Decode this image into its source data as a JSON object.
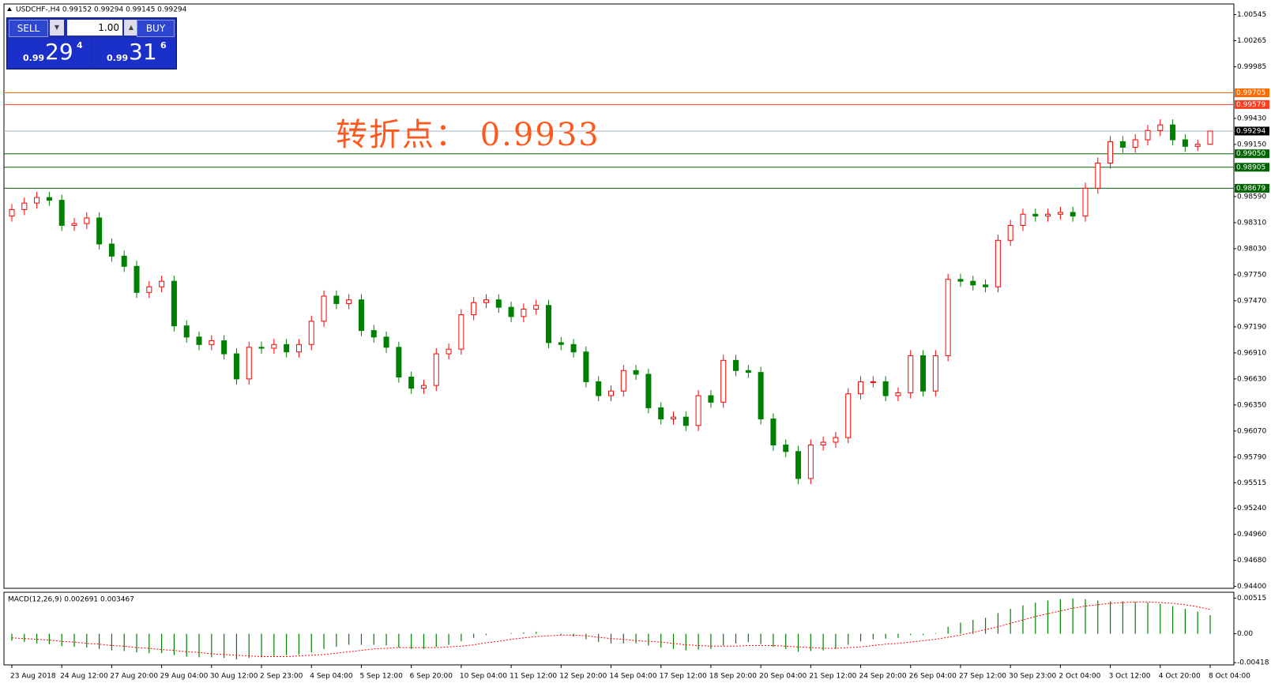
{
  "header": {
    "symbol_info": "USDCHF-,H4  0.99152 0.99294 0.99145 0.99294"
  },
  "trade_panel": {
    "sell": "SELL",
    "buy": "BUY",
    "lot": "1.00",
    "sell_price": {
      "prefix": "0.99",
      "main": "29",
      "suffix": "4"
    },
    "buy_price": {
      "prefix": "0.99",
      "main": "31",
      "suffix": "6"
    }
  },
  "annotation": "转折点： 0.9933",
  "chart_data": [
    {
      "type": "candlestick",
      "up_color": "#ff0000",
      "down_color": "#008000",
      "ylim": [
        0.9438,
        1.0066
      ],
      "yticks": [
        1.00545,
        1.00265,
        0.99985,
        {
          "value": 0.9943,
          "label": "0.99430"
        },
        {
          "value": 0.9915,
          "label": "0.99150"
        },
        {
          "value": 0.9859,
          "label": "0.98590"
        },
        {
          "value": 0.9831,
          "label": "0.98310"
        },
        {
          "value": 0.9803,
          "label": "0.98030"
        },
        {
          "value": 0.9775,
          "label": "0.97750"
        },
        {
          "value": 0.9747,
          "label": "0.97470"
        },
        {
          "value": 0.9719,
          "label": "0.97190"
        },
        {
          "value": 0.9691,
          "label": "0.96910"
        },
        {
          "value": 0.9663,
          "label": "0.96630"
        },
        {
          "value": 0.9635,
          "label": "0.96350"
        },
        {
          "value": 0.9607,
          "label": "0.96070"
        },
        {
          "value": 0.9579,
          "label": "0.95790"
        },
        0.95515,
        {
          "value": 0.9524,
          "label": "0.95240"
        },
        {
          "value": 0.9496,
          "label": "0.94960"
        },
        {
          "value": 0.9468,
          "label": "0.94680"
        },
        {
          "value": 0.944,
          "label": "0.94400"
        }
      ],
      "levels": [
        {
          "value": 0.99705,
          "color": "#ff6a00"
        },
        {
          "value": 0.99579,
          "color": "#ff3c1e"
        },
        {
          "value": 0.99294,
          "color": "#000000",
          "line_color": "#9fb4c8"
        },
        {
          "value": {
            "value": 0.9905,
            "label": "0.99050"
          },
          "color": "#006400"
        },
        {
          "value": 0.98905,
          "color": "#006400"
        },
        {
          "value": 0.98679,
          "color": "#006400"
        }
      ],
      "x": [
        "23 Aug 2018",
        null,
        null,
        null,
        "24 Aug 12:00",
        null,
        null,
        null,
        "27 Aug 20:00",
        null,
        null,
        null,
        "29 Aug 04:00",
        null,
        null,
        null,
        "30 Aug 12:00",
        null,
        null,
        null,
        "2 Sep 23:00",
        null,
        null,
        null,
        "4 Sep 04:00",
        null,
        null,
        null,
        "5 Sep 12:00",
        null,
        null,
        null,
        "6 Sep 20:00",
        null,
        null,
        null,
        "10 Sep 04:00",
        null,
        null,
        null,
        "11 Sep 12:00",
        null,
        null,
        null,
        "12 Sep 20:00",
        null,
        null,
        null,
        "14 Sep 04:00",
        null,
        null,
        null,
        "17 Sep 12:00",
        null,
        null,
        null,
        "18 Sep 20:00",
        null,
        null,
        null,
        "20 Sep 04:00",
        null,
        null,
        null,
        "21 Sep 12:00",
        null,
        null,
        null,
        "24 Sep 20:00",
        null,
        null,
        null,
        "26 Sep 04:00",
        null,
        null,
        null,
        "27 Sep 12:00",
        null,
        null,
        null,
        "30 Sep 23:00",
        null,
        null,
        null,
        "2 Oct 04:00",
        null,
        null,
        null,
        "3 Oct 12:00",
        null,
        null,
        null,
        "4 Oct 20:00",
        null,
        null,
        null,
        "8 Oct 04:00"
      ],
      "open": [
        0.9838,
        0.9845,
        0.9852,
        0.9858,
        0.9855,
        0.9828,
        0.983,
        0.9836,
        0.9808,
        0.9795,
        0.9784,
        0.9756,
        0.9762,
        0.9768,
        0.972,
        0.9708,
        0.97,
        0.9704,
        0.969,
        0.9663,
        0.9697,
        0.9696,
        0.97,
        0.9692,
        0.97,
        0.9725,
        0.9752,
        0.9744,
        0.9748,
        0.9715,
        0.9708,
        0.9697,
        0.9665,
        0.9653,
        0.9656,
        0.969,
        0.9695,
        0.9732,
        0.9745,
        0.9748,
        0.974,
        0.973,
        0.9738,
        0.9742,
        0.9702,
        0.97,
        0.9692,
        0.966,
        0.9645,
        0.965,
        0.9672,
        0.9668,
        0.9632,
        0.962,
        0.9622,
        0.9613,
        0.9645,
        0.9638,
        0.9683,
        0.9672,
        0.967,
        0.962,
        0.9592,
        0.9585,
        0.9556,
        0.9592,
        0.9595,
        0.96,
        0.9647,
        0.966,
        0.966,
        0.9645,
        0.9648,
        0.9688,
        0.965,
        0.9688,
        0.977,
        0.9768,
        0.9764,
        0.9762,
        0.9812,
        0.9828,
        0.984,
        0.9838,
        0.984,
        0.9842,
        0.9838,
        0.9868,
        0.9895,
        0.9918,
        0.9912,
        0.992,
        0.993,
        0.9936,
        0.992,
        0.9913,
        0.99152
      ],
      "high": [
        0.9851,
        0.9858,
        0.9864,
        0.9864,
        0.9861,
        0.9836,
        0.9842,
        0.9842,
        0.9814,
        0.9801,
        0.979,
        0.9768,
        0.9774,
        0.9774,
        0.9726,
        0.9714,
        0.971,
        0.971,
        0.9696,
        0.9703,
        0.9703,
        0.9706,
        0.9706,
        0.9706,
        0.9731,
        0.9758,
        0.9758,
        0.9754,
        0.9754,
        0.9721,
        0.9714,
        0.9703,
        0.9671,
        0.9662,
        0.9696,
        0.9701,
        0.9738,
        0.9751,
        0.9754,
        0.9754,
        0.9746,
        0.9744,
        0.9748,
        0.9748,
        0.9708,
        0.9706,
        0.9698,
        0.9666,
        0.9656,
        0.9678,
        0.9678,
        0.9674,
        0.9638,
        0.9628,
        0.9628,
        0.9651,
        0.9651,
        0.9689,
        0.9689,
        0.9678,
        0.9676,
        0.9626,
        0.9598,
        0.9591,
        0.9598,
        0.9601,
        0.9606,
        0.9653,
        0.9666,
        0.9666,
        0.9666,
        0.9654,
        0.9694,
        0.9694,
        0.9694,
        0.9776,
        0.9776,
        0.9774,
        0.977,
        0.9818,
        0.9834,
        0.9846,
        0.9846,
        0.9846,
        0.9848,
        0.9848,
        0.9874,
        0.9901,
        0.9924,
        0.9924,
        0.9926,
        0.9936,
        0.9942,
        0.9942,
        0.9926,
        0.992,
        0.99294
      ],
      "low": [
        0.9832,
        0.9839,
        0.9846,
        0.9849,
        0.9822,
        0.9822,
        0.9824,
        0.9802,
        0.9789,
        0.9778,
        0.975,
        0.975,
        0.9756,
        0.9714,
        0.9702,
        0.9694,
        0.9694,
        0.9684,
        0.9657,
        0.9657,
        0.969,
        0.969,
        0.9686,
        0.9686,
        0.9694,
        0.9719,
        0.9738,
        0.9738,
        0.9709,
        0.9702,
        0.9691,
        0.9659,
        0.9647,
        0.9647,
        0.965,
        0.9684,
        0.9689,
        0.9726,
        0.9739,
        0.9734,
        0.9724,
        0.9724,
        0.9732,
        0.9696,
        0.9694,
        0.9686,
        0.9654,
        0.9639,
        0.9639,
        0.9644,
        0.9662,
        0.9626,
        0.9614,
        0.9614,
        0.9607,
        0.9607,
        0.9632,
        0.9632,
        0.9666,
        0.9664,
        0.9614,
        0.9586,
        0.9579,
        0.955,
        0.955,
        0.9586,
        0.9589,
        0.9594,
        0.9641,
        0.9654,
        0.9639,
        0.9639,
        0.9642,
        0.9644,
        0.9644,
        0.9682,
        0.9762,
        0.9758,
        0.9756,
        0.9756,
        0.9806,
        0.9822,
        0.9832,
        0.9832,
        0.9834,
        0.9832,
        0.9832,
        0.9862,
        0.9889,
        0.9906,
        0.9906,
        0.9914,
        0.9924,
        0.9914,
        0.9907,
        0.9908,
        0.99145
      ],
      "close": [
        0.9845,
        0.9852,
        0.9858,
        0.9855,
        0.9828,
        0.983,
        0.9836,
        0.9808,
        0.9795,
        0.9784,
        0.9756,
        0.9762,
        0.9768,
        0.972,
        0.9708,
        0.97,
        0.9704,
        0.969,
        0.9663,
        0.9697,
        0.9696,
        0.97,
        0.9692,
        0.97,
        0.9725,
        0.9752,
        0.9744,
        0.9748,
        0.9715,
        0.9708,
        0.9697,
        0.9665,
        0.9653,
        0.9656,
        0.969,
        0.9695,
        0.9732,
        0.9745,
        0.9748,
        0.974,
        0.973,
        0.9738,
        0.9742,
        0.9702,
        0.97,
        0.9692,
        0.966,
        0.9645,
        0.965,
        0.9672,
        0.9668,
        0.9632,
        0.962,
        0.9622,
        0.9613,
        0.9645,
        0.9638,
        0.9683,
        0.9672,
        0.967,
        0.962,
        0.9592,
        0.9585,
        0.9556,
        0.9592,
        0.9595,
        0.96,
        0.9647,
        0.966,
        0.966,
        0.9645,
        0.9648,
        0.9688,
        0.965,
        0.9688,
        0.977,
        0.9768,
        0.9764,
        0.9762,
        0.9812,
        0.9828,
        0.984,
        0.9838,
        0.984,
        0.9842,
        0.9838,
        0.9868,
        0.9895,
        0.9918,
        0.9912,
        0.992,
        0.993,
        0.9936,
        0.992,
        0.9913,
        0.99152,
        0.99294
      ]
    },
    {
      "type": "macd",
      "title": "MACD(12,26,9) 0.002691 0.003467",
      "ylim": [
        -0.0045,
        0.006
      ],
      "yticks": [
        0.00515,
        {
          "value": 0,
          "label": "0.00"
        },
        -0.00418
      ],
      "histogram": {
        "color": "#008000",
        "values": [
          -0.001,
          -0.0012,
          -0.0014,
          -0.0015,
          -0.0018,
          -0.0019,
          -0.002,
          -0.0022,
          -0.0024,
          -0.0025,
          -0.0027,
          -0.0028,
          -0.0028,
          -0.0031,
          -0.0033,
          -0.0034,
          -0.0034,
          -0.0035,
          -0.0037,
          -0.0035,
          -0.0034,
          -0.0032,
          -0.0031,
          -0.003,
          -0.0027,
          -0.0022,
          -0.0019,
          -0.0016,
          -0.0016,
          -0.0016,
          -0.0017,
          -0.002,
          -0.0022,
          -0.0022,
          -0.0019,
          -0.0016,
          -0.0011,
          -0.0006,
          -0.0002,
          0.0,
          0.0001,
          0.0002,
          0.0003,
          0.0,
          -0.0002,
          -0.0004,
          -0.0008,
          -0.0012,
          -0.0014,
          -0.0014,
          -0.0014,
          -0.0017,
          -0.002,
          -0.0022,
          -0.0024,
          -0.0023,
          -0.0022,
          -0.0017,
          -0.0014,
          -0.0012,
          -0.0015,
          -0.0019,
          -0.0022,
          -0.0026,
          -0.0025,
          -0.0024,
          -0.0022,
          -0.0016,
          -0.0011,
          -0.0008,
          -0.0007,
          -0.0006,
          -0.0002,
          -0.0002,
          0.0001,
          0.001,
          0.0016,
          0.002,
          0.0023,
          0.003,
          0.0036,
          0.0041,
          0.0045,
          0.0048,
          0.005,
          0.0051,
          0.005,
          0.0048,
          0.0047,
          0.0047,
          0.0046,
          0.0045,
          0.0043,
          0.004,
          0.0036,
          0.0032,
          0.0027
        ]
      },
      "signal": {
        "color": "#ff0000",
        "values": [
          -0.0006,
          -0.0007,
          -0.0008,
          -0.0009,
          -0.0011,
          -0.0012,
          -0.0014,
          -0.0015,
          -0.0017,
          -0.0018,
          -0.002,
          -0.0021,
          -0.0023,
          -0.0024,
          -0.0026,
          -0.0027,
          -0.0029,
          -0.003,
          -0.0031,
          -0.0032,
          -0.0033,
          -0.0033,
          -0.0033,
          -0.0032,
          -0.0031,
          -0.003,
          -0.0028,
          -0.0026,
          -0.0024,
          -0.0022,
          -0.0021,
          -0.002,
          -0.002,
          -0.002,
          -0.002,
          -0.0019,
          -0.0018,
          -0.0016,
          -0.0013,
          -0.0011,
          -0.0008,
          -0.0006,
          -0.0004,
          -0.0003,
          -0.0002,
          -0.0002,
          -0.0003,
          -0.0005,
          -0.0007,
          -0.0008,
          -0.001,
          -0.0011,
          -0.0012,
          -0.0014,
          -0.0016,
          -0.0017,
          -0.0018,
          -0.0018,
          -0.0018,
          -0.0017,
          -0.0017,
          -0.0017,
          -0.0018,
          -0.0019,
          -0.002,
          -0.0021,
          -0.0021,
          -0.002,
          -0.0019,
          -0.0017,
          -0.0015,
          -0.0014,
          -0.0012,
          -0.001,
          -0.0008,
          -0.0005,
          -0.0002,
          0.0002,
          0.0006,
          0.001,
          0.0015,
          0.002,
          0.0025,
          0.0029,
          0.0033,
          0.0037,
          0.004,
          0.0042,
          0.0044,
          0.0045,
          0.0046,
          0.0046,
          0.0045,
          0.0044,
          0.0042,
          0.0039,
          0.0035
        ]
      }
    }
  ]
}
